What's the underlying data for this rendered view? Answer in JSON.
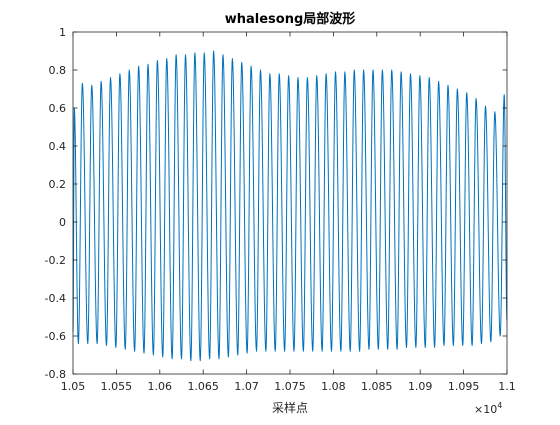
{
  "chart_data": {
    "type": "line",
    "title": "whalesong局部波形",
    "xlabel": "采样点",
    "ylabel": "",
    "xlim": [
      10500,
      11000
    ],
    "ylim": [
      -0.8,
      1
    ],
    "x_exponent_label": "×10",
    "x_exponent_power": "4",
    "xticks": [
      10500,
      10550,
      10600,
      10650,
      10700,
      10750,
      10800,
      10850,
      10900,
      10950,
      11000
    ],
    "xtick_labels": [
      "1.05",
      "1.055",
      "1.06",
      "1.065",
      "1.07",
      "1.075",
      "1.08",
      "1.085",
      "1.09",
      "1.095",
      "1.1"
    ],
    "yticks": [
      -0.8,
      -0.6,
      -0.4,
      -0.2,
      0,
      0.2,
      0.4,
      0.6,
      0.8,
      1
    ],
    "ytick_labels": [
      "-0.8",
      "-0.6",
      "-0.4",
      "-0.2",
      "0",
      "0.2",
      "0.4",
      "0.6",
      "0.8",
      "1"
    ],
    "grid": false,
    "box": true,
    "series": [
      {
        "color": "#0072BD",
        "peaks": [
          [
            10501.5,
            0.6
          ],
          [
            10510.8,
            0.73
          ],
          [
            10521.6,
            0.72
          ],
          [
            10532.4,
            0.74
          ],
          [
            10543.2,
            0.76
          ],
          [
            10554.0,
            0.78
          ],
          [
            10564.8,
            0.8
          ],
          [
            10575.6,
            0.82
          ],
          [
            10586.4,
            0.83
          ],
          [
            10597.2,
            0.85
          ],
          [
            10608.0,
            0.86
          ],
          [
            10618.8,
            0.88
          ],
          [
            10629.6,
            0.88
          ],
          [
            10640.4,
            0.89
          ],
          [
            10651.2,
            0.89
          ],
          [
            10662.0,
            0.9
          ],
          [
            10672.8,
            0.88
          ],
          [
            10683.6,
            0.86
          ],
          [
            10694.4,
            0.84
          ],
          [
            10705.2,
            0.82
          ],
          [
            10716.0,
            0.8
          ],
          [
            10726.8,
            0.78
          ],
          [
            10737.6,
            0.78
          ],
          [
            10748.4,
            0.77
          ],
          [
            10759.2,
            0.76
          ],
          [
            10770.0,
            0.76
          ],
          [
            10780.8,
            0.77
          ],
          [
            10791.6,
            0.78
          ],
          [
            10802.4,
            0.79
          ],
          [
            10813.2,
            0.79
          ],
          [
            10824.0,
            0.8
          ],
          [
            10834.8,
            0.8
          ],
          [
            10845.6,
            0.8
          ],
          [
            10856.4,
            0.8
          ],
          [
            10867.2,
            0.8
          ],
          [
            10878.0,
            0.79
          ],
          [
            10888.8,
            0.78
          ],
          [
            10899.6,
            0.77
          ],
          [
            10910.4,
            0.76
          ],
          [
            10921.2,
            0.74
          ],
          [
            10932.0,
            0.72
          ],
          [
            10942.8,
            0.7
          ],
          [
            10953.6,
            0.68
          ],
          [
            10964.4,
            0.65
          ],
          [
            10975.2,
            0.61
          ],
          [
            10986.0,
            0.58
          ],
          [
            10996.8,
            0.67
          ]
        ],
        "troughs": [
          [
            10500.0,
            -0.58
          ],
          [
            10506.2,
            -0.64
          ],
          [
            10517.0,
            -0.64
          ],
          [
            10527.8,
            -0.64
          ],
          [
            10538.6,
            -0.65
          ],
          [
            10549.4,
            -0.66
          ],
          [
            10560.2,
            -0.67
          ],
          [
            10571.0,
            -0.68
          ],
          [
            10581.8,
            -0.69
          ],
          [
            10592.6,
            -0.7
          ],
          [
            10603.4,
            -0.71
          ],
          [
            10614.2,
            -0.72
          ],
          [
            10625.0,
            -0.72
          ],
          [
            10635.8,
            -0.73
          ],
          [
            10646.6,
            -0.73
          ],
          [
            10657.4,
            -0.72
          ],
          [
            10668.2,
            -0.72
          ],
          [
            10679.0,
            -0.71
          ],
          [
            10689.8,
            -0.7
          ],
          [
            10700.6,
            -0.69
          ],
          [
            10711.4,
            -0.68
          ],
          [
            10722.2,
            -0.68
          ],
          [
            10733.0,
            -0.68
          ],
          [
            10743.8,
            -0.68
          ],
          [
            10754.6,
            -0.68
          ],
          [
            10765.4,
            -0.68
          ],
          [
            10776.2,
            -0.68
          ],
          [
            10787.0,
            -0.68
          ],
          [
            10797.8,
            -0.68
          ],
          [
            10808.6,
            -0.68
          ],
          [
            10819.4,
            -0.68
          ],
          [
            10830.2,
            -0.68
          ],
          [
            10841.0,
            -0.67
          ],
          [
            10851.8,
            -0.67
          ],
          [
            10862.6,
            -0.67
          ],
          [
            10873.4,
            -0.67
          ],
          [
            10884.2,
            -0.66
          ],
          [
            10895.0,
            -0.66
          ],
          [
            10905.8,
            -0.66
          ],
          [
            10916.6,
            -0.66
          ],
          [
            10927.4,
            -0.65
          ],
          [
            10938.2,
            -0.65
          ],
          [
            10949.0,
            -0.65
          ],
          [
            10959.8,
            -0.65
          ],
          [
            10970.6,
            -0.64
          ],
          [
            10981.4,
            -0.63
          ],
          [
            10992.2,
            -0.6
          ],
          [
            11000.0,
            -0.52
          ]
        ]
      }
    ]
  }
}
